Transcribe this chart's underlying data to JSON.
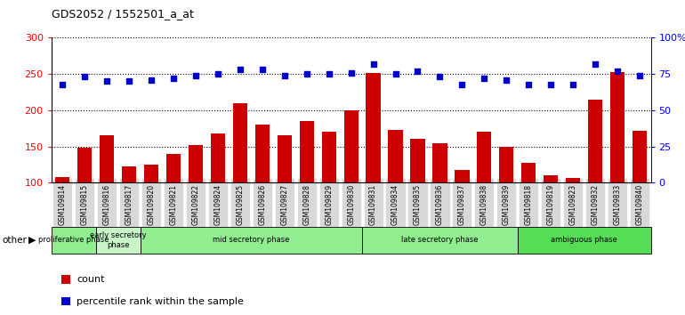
{
  "title": "GDS2052 / 1552501_a_at",
  "samples": [
    "GSM109814",
    "GSM109815",
    "GSM109816",
    "GSM109817",
    "GSM109820",
    "GSM109821",
    "GSM109822",
    "GSM109824",
    "GSM109825",
    "GSM109826",
    "GSM109827",
    "GSM109828",
    "GSM109829",
    "GSM109830",
    "GSM109831",
    "GSM109834",
    "GSM109835",
    "GSM109836",
    "GSM109837",
    "GSM109838",
    "GSM109839",
    "GSM109818",
    "GSM109819",
    "GSM109823",
    "GSM109832",
    "GSM109833",
    "GSM109840"
  ],
  "counts": [
    108,
    148,
    165,
    123,
    125,
    140,
    152,
    168,
    210,
    180,
    165,
    185,
    170,
    200,
    252,
    173,
    160,
    155,
    117,
    170,
    150,
    127,
    110,
    107,
    215,
    253,
    172
  ],
  "percentiles": [
    68,
    73,
    70,
    70,
    71,
    72,
    74,
    75,
    78,
    78,
    74,
    75,
    75,
    76,
    82,
    75,
    77,
    73,
    68,
    72,
    71,
    68,
    68,
    68,
    82,
    77,
    74
  ],
  "phases": [
    {
      "label": "proliferative phase",
      "start": 0,
      "end": 2,
      "color": "#90EE90"
    },
    {
      "label": "early secretory\nphase",
      "start": 2,
      "end": 4,
      "color": "#b8f4b8"
    },
    {
      "label": "mid secretory phase",
      "start": 4,
      "end": 14,
      "color": "#90EE90"
    },
    {
      "label": "late secretory phase",
      "start": 14,
      "end": 21,
      "color": "#90EE90"
    },
    {
      "label": "ambiguous phase",
      "start": 21,
      "end": 27,
      "color": "#55dd55"
    }
  ],
  "ylim_left": [
    100,
    300
  ],
  "ylim_right": [
    0,
    100
  ],
  "yticks_left": [
    100,
    150,
    200,
    250,
    300
  ],
  "yticks_right": [
    0,
    25,
    50,
    75,
    100
  ],
  "ytick_labels_right": [
    "0",
    "25",
    "50",
    "75",
    "100%"
  ],
  "bar_color": "#CC0000",
  "dot_color": "#0000CC",
  "bg_color": "#ffffff",
  "tick_bg_color": "#d8d8d8",
  "legend_count_color": "#CC0000",
  "legend_pct_color": "#0000CC"
}
